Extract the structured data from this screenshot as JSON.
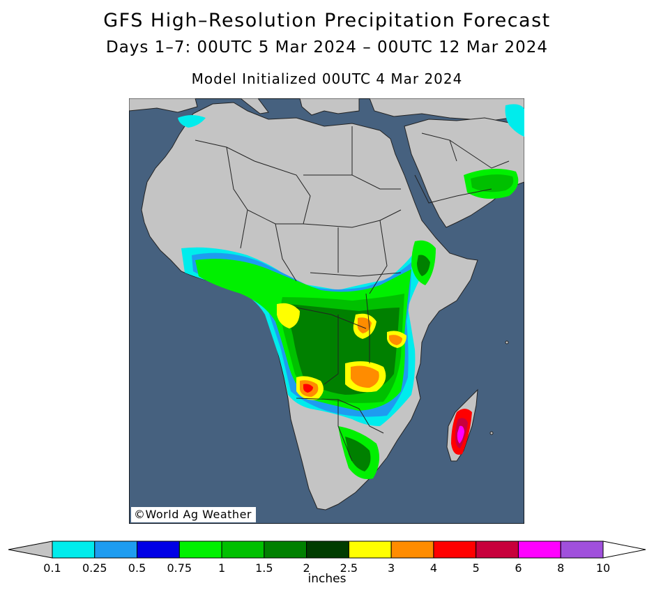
{
  "title": "GFS High–Resolution Precipitation Forecast",
  "subtitle": "Days 1–7: 00UTC 5 Mar 2024 – 00UTC 12 Mar 2024",
  "init_line": "Model Initialized 00UTC 4 Mar 2024",
  "credit": "©World Ag Weather",
  "colors": {
    "ocean": "#46617f",
    "land": "#c4c4c4",
    "border": "#222222"
  },
  "legend": {
    "units": "inches",
    "ticks": [
      "0.1",
      "0.25",
      "0.5",
      "0.75",
      "1",
      "1.5",
      "2",
      "2.5",
      "3",
      "4",
      "5",
      "6",
      "8",
      "10"
    ],
    "colors": [
      "#c4c4c4",
      "#00ecec",
      "#1e9cf0",
      "#0000e6",
      "#00f000",
      "#00c000",
      "#008000",
      "#003c00",
      "#ffff00",
      "#ff8c00",
      "#ff0000",
      "#c8003c",
      "#ff00ff",
      "#a050dc",
      "#ffffff"
    ]
  }
}
